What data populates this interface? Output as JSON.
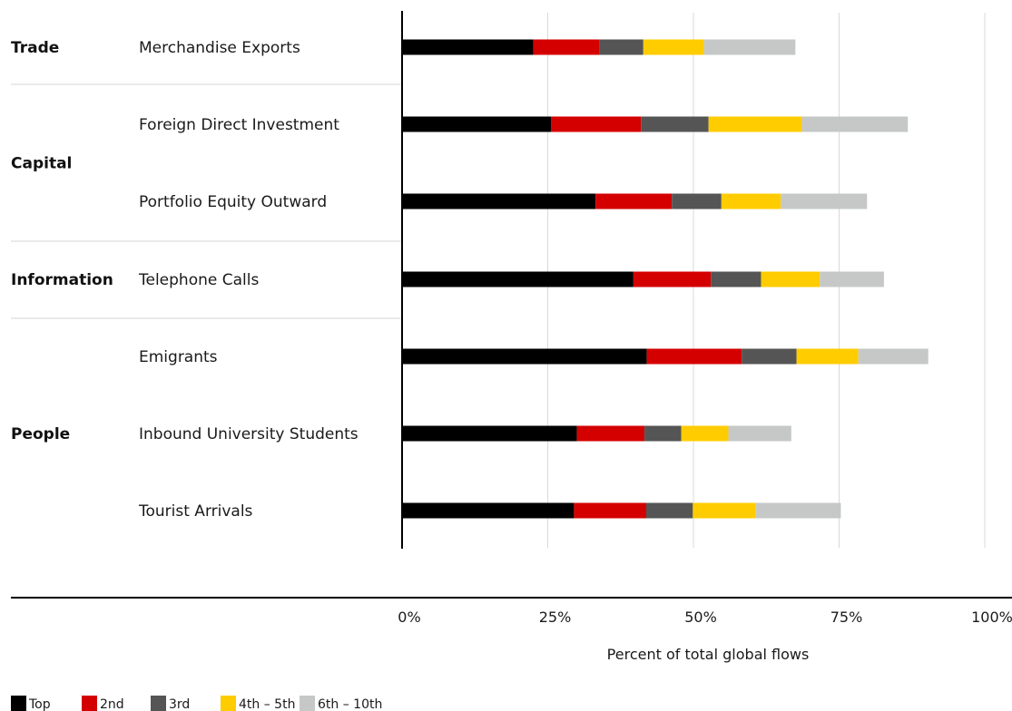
{
  "chart_data": {
    "type": "bar",
    "orientation": "horizontal",
    "stacked": true,
    "xlabel": "Percent of total global flows",
    "xlim": [
      0,
      100
    ],
    "x_ticks": [
      "0%",
      "25%",
      "50%",
      "75%",
      "100%"
    ],
    "x_tick_values": [
      0,
      25,
      50,
      75,
      100
    ],
    "grid": true,
    "legend_position": "bottom-left",
    "groups": [
      {
        "label": "Trade",
        "categories": [
          "Merchandise Exports"
        ]
      },
      {
        "label": "Capital",
        "categories": [
          "Foreign Direct Investment",
          "Portfolio Equity Outward"
        ]
      },
      {
        "label": "Information",
        "categories": [
          "Telephone Calls"
        ]
      },
      {
        "label": "People",
        "categories": [
          "Emigrants",
          "Inbound University Students",
          "Tourist Arrivals"
        ]
      }
    ],
    "categories": [
      "Merchandise Exports",
      "Foreign Direct Investment",
      "Portfolio Equity Outward",
      "Telephone Calls",
      "Emigrants",
      "Inbound University Students",
      "Tourist Arrivals"
    ],
    "series": [
      {
        "name": "Top",
        "color": "#000000",
        "values": [
          22.5,
          25.6,
          33.2,
          39.7,
          42.0,
          30.0,
          29.5
        ]
      },
      {
        "name": "2nd",
        "color": "#d40000",
        "values": [
          11.4,
          15.4,
          13.1,
          13.3,
          16.3,
          11.6,
          12.4
        ]
      },
      {
        "name": "3rd",
        "color": "#555555",
        "values": [
          7.5,
          11.6,
          8.5,
          8.6,
          9.4,
          6.3,
          8.0
        ]
      },
      {
        "name": "4th – 5th",
        "color": "#ffcc00",
        "values": [
          10.4,
          16.0,
          10.2,
          10.1,
          10.6,
          8.1,
          10.8
        ]
      },
      {
        "name": "6th – 10th",
        "color": "#c6c8c8",
        "values": [
          15.7,
          18.2,
          14.8,
          11.0,
          12.0,
          10.8,
          14.6
        ]
      }
    ]
  }
}
